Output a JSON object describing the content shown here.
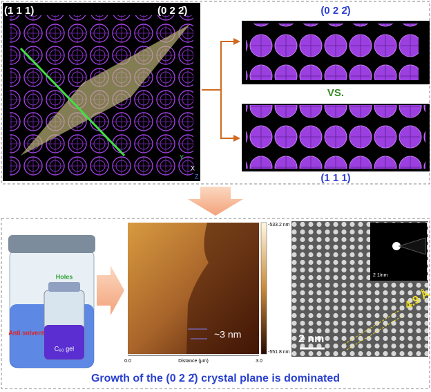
{
  "top_panel": {
    "structure_label_111": "(1 1 1)",
    "structure_label_022": "(0 2 2̄)",
    "upper_view_label": "(0 2 2̄)",
    "comparison": "VS.",
    "lower_view_label": "(1 1 1)",
    "axes": [
      "Y",
      "X",
      "Z"
    ]
  },
  "bottom_panel": {
    "vial_holes": "Holes",
    "vial_antisolvent": "Anti solvent",
    "vial_gel": "C₆₀ gel",
    "afm": {
      "scale_max": "-533.2 nm",
      "scale_min": "-551.8 nm",
      "step": "~3 nm",
      "x_start": "0.0",
      "x_label": "Distance (μm)",
      "x_end": "3.0"
    },
    "tem": {
      "scale_bar": "2 nm",
      "spacing": "4.9 Å",
      "diffraction_scale": "2 1/nm"
    }
  },
  "caption": "Growth of the (0 2 2̄) crystal plane is dominated"
}
